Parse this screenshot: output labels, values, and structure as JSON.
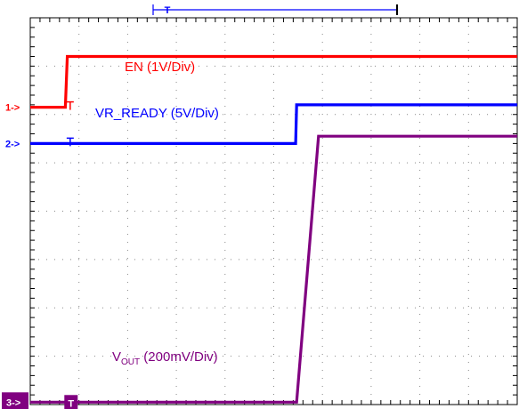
{
  "chart_data": {
    "type": "line",
    "title": "",
    "xlabel": "",
    "ylabel": "",
    "divisions": {
      "x": 10,
      "y": 8
    },
    "xlim": [
      0,
      10
    ],
    "ylim": [
      0,
      8
    ],
    "grid": "dotted",
    "trigger_marker": "T",
    "series": [
      {
        "name": "EN (1V/Div)",
        "channel_marker": "1->",
        "color": "#ff0000",
        "x": [
          0,
          0.72,
          0.76,
          10
        ],
        "y": [
          6.15,
          6.15,
          7.2,
          7.2
        ]
      },
      {
        "name": "VR_READY (5V/Div)",
        "channel_marker": "2->",
        "color": "#0000ff",
        "x": [
          0,
          5.45,
          5.47,
          10
        ],
        "y": [
          5.4,
          5.4,
          6.2,
          6.2
        ]
      },
      {
        "name": "(200mV/Div)",
        "channel_marker": "3->",
        "color": "#800080",
        "x": [
          0,
          5.47,
          5.92,
          10
        ],
        "y": [
          0.05,
          0.05,
          5.55,
          5.55
        ]
      }
    ]
  },
  "labels": {
    "vout_main": "V",
    "vout_sub": "OUT"
  }
}
